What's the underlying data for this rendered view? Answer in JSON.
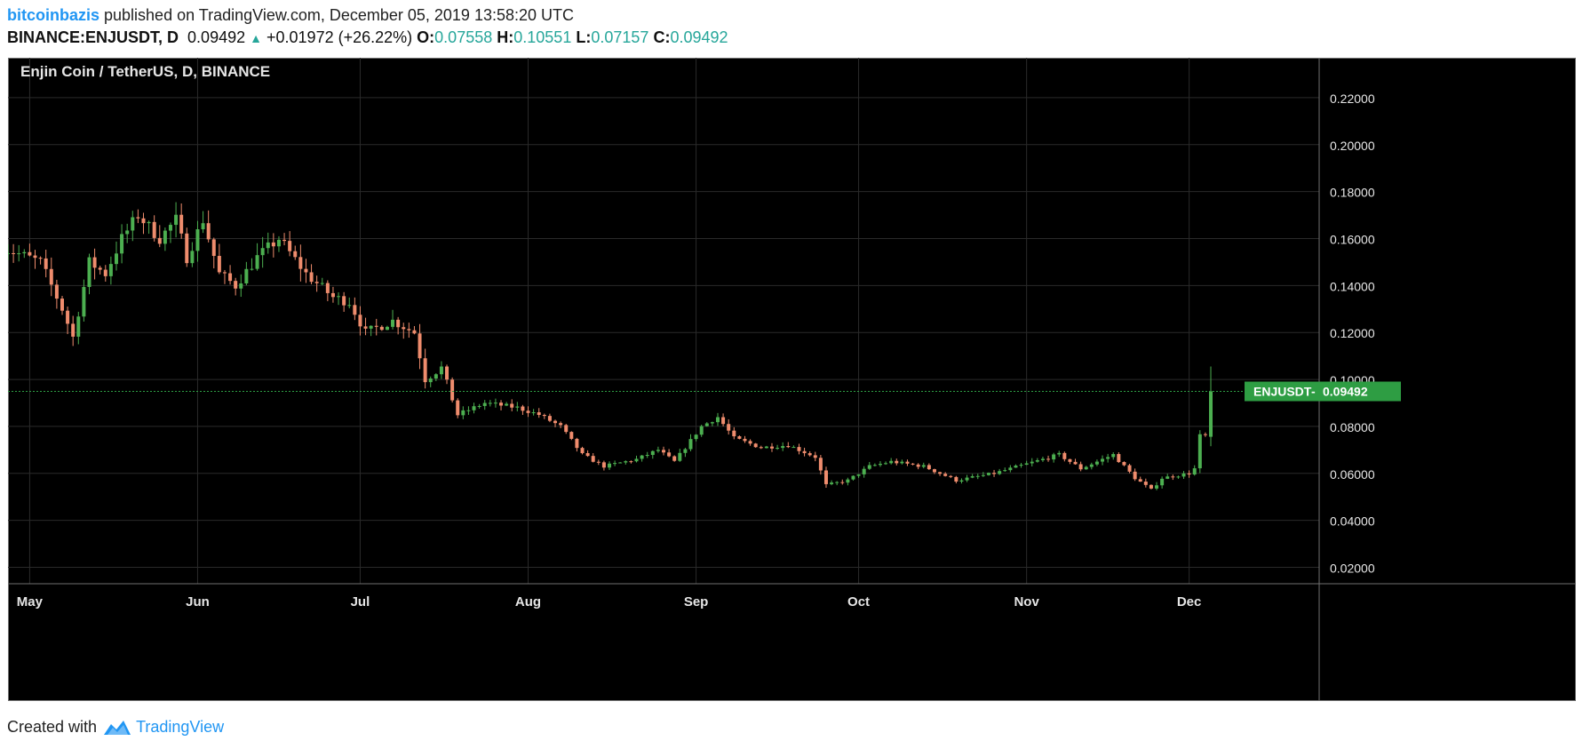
{
  "header": {
    "author": "bitcoinbazis",
    "published_text": " published on TradingView.com, December 05, 2019 13:58:20 UTC",
    "symbol": "BINANCE:ENJUSDT, D",
    "last": "0.09492",
    "change": "+0.01972 (+26.22%)",
    "open_label": "O:",
    "open": "0.07558",
    "high_label": "H:",
    "high": "0.10551",
    "low_label": "L:",
    "low": "0.07157",
    "close_label": "C:",
    "close": "0.09492"
  },
  "footer": {
    "created_with": "Created with",
    "brand": "TradingView"
  },
  "colors": {
    "up": "#4caf50",
    "down": "#ef8c6d",
    "background": "#000000",
    "grid": "#2a2a2a",
    "badge": "#2e9d43",
    "price_line": "#2e9d43"
  },
  "chart_data": {
    "type": "candlestick",
    "title": "Enjin Coin / TetherUS, D, BINANCE",
    "x_tick_labels": [
      "May",
      "Jun",
      "Jul",
      "Aug",
      "Sep",
      "Oct",
      "Nov",
      "Dec"
    ],
    "x_range": [
      "2019-04-27",
      "2019-12-25"
    ],
    "y_ticks": [
      "0.22000",
      "0.20000",
      "0.18000",
      "0.16000",
      "0.14000",
      "0.12000",
      "0.10000",
      "0.08000",
      "0.06000",
      "0.04000",
      "0.02000"
    ],
    "ylim": [
      0.013,
      0.237
    ],
    "grid": true,
    "last_price_label": "ENJUSDT",
    "last_price_value": "0.09492",
    "last_price": 0.09492,
    "anchors": [
      [
        "2019-04-26",
        0.157
      ],
      [
        "2019-05-04",
        0.15
      ],
      [
        "2019-05-08",
        0.13
      ],
      [
        "2019-05-10",
        0.118
      ],
      [
        "2019-05-13",
        0.15
      ],
      [
        "2019-05-16",
        0.145
      ],
      [
        "2019-05-19",
        0.16
      ],
      [
        "2019-05-22",
        0.17
      ],
      [
        "2019-05-26",
        0.16
      ],
      [
        "2019-05-29",
        0.168
      ],
      [
        "2019-05-31",
        0.152
      ],
      [
        "2019-06-03",
        0.168
      ],
      [
        "2019-06-06",
        0.145
      ],
      [
        "2019-06-09",
        0.14
      ],
      [
        "2019-06-13",
        0.152
      ],
      [
        "2019-06-17",
        0.16
      ],
      [
        "2019-06-22",
        0.145
      ],
      [
        "2019-06-27",
        0.135
      ],
      [
        "2019-06-30",
        0.133
      ],
      [
        "2019-07-03",
        0.12
      ],
      [
        "2019-07-08",
        0.125
      ],
      [
        "2019-07-12",
        0.12
      ],
      [
        "2019-07-14",
        0.1
      ],
      [
        "2019-07-17",
        0.105
      ],
      [
        "2019-07-20",
        0.085
      ],
      [
        "2019-07-25",
        0.09
      ],
      [
        "2019-07-31",
        0.088
      ],
      [
        "2019-08-04",
        0.085
      ],
      [
        "2019-08-08",
        0.08
      ],
      [
        "2019-08-12",
        0.068
      ],
      [
        "2019-08-16",
        0.063
      ],
      [
        "2019-08-22",
        0.066
      ],
      [
        "2019-08-26",
        0.07
      ],
      [
        "2019-08-29",
        0.065
      ],
      [
        "2019-09-03",
        0.08
      ],
      [
        "2019-09-06",
        0.084
      ],
      [
        "2019-09-09",
        0.075
      ],
      [
        "2019-09-14",
        0.071
      ],
      [
        "2019-09-19",
        0.072
      ],
      [
        "2019-09-24",
        0.067
      ],
      [
        "2019-09-26",
        0.055
      ],
      [
        "2019-09-30",
        0.057
      ],
      [
        "2019-10-04",
        0.063
      ],
      [
        "2019-10-08",
        0.065
      ],
      [
        "2019-10-14",
        0.063
      ],
      [
        "2019-10-20",
        0.057
      ],
      [
        "2019-10-27",
        0.06
      ],
      [
        "2019-11-02",
        0.064
      ],
      [
        "2019-11-08",
        0.068
      ],
      [
        "2019-11-12",
        0.062
      ],
      [
        "2019-11-18",
        0.068
      ],
      [
        "2019-11-22",
        0.058
      ],
      [
        "2019-11-25",
        0.053
      ],
      [
        "2019-11-27",
        0.058
      ],
      [
        "2019-12-02",
        0.06
      ],
      [
        "2019-12-03",
        0.062
      ],
      [
        "2019-12-04",
        0.076
      ]
    ],
    "last_candle": {
      "date": "2019-12-05",
      "open": 0.07558,
      "high": 0.10551,
      "low": 0.07157,
      "close": 0.09492
    }
  }
}
